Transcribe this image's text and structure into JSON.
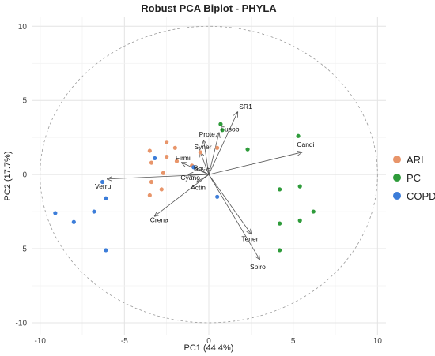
{
  "chart_data": {
    "type": "scatter",
    "title": "Robust PCA Biplot - PHYLA",
    "xlabel": "PC1 (44.4%)",
    "ylabel": "PC2 (17.7%)",
    "xlim": [
      -10.5,
      10.5
    ],
    "ylim": [
      -10.8,
      10.6
    ],
    "xticks": [
      -10,
      -5,
      0,
      5,
      10
    ],
    "yticks": [
      -10,
      -5,
      0,
      5,
      10
    ],
    "grid": true,
    "legend_position": "right",
    "circle_radius": 10,
    "series": [
      {
        "name": "ARI",
        "color": "#E8956A",
        "points": [
          [
            -2.5,
            2.2
          ],
          [
            -2.0,
            1.8
          ],
          [
            -3.5,
            1.6
          ],
          [
            -2.5,
            1.2
          ],
          [
            -3.4,
            0.8
          ],
          [
            -1.9,
            0.9
          ],
          [
            -1.0,
            0.6
          ],
          [
            -2.7,
            0.1
          ],
          [
            -3.4,
            -0.5
          ],
          [
            -2.8,
            -1.0
          ],
          [
            -3.5,
            -1.4
          ],
          [
            -0.5,
            1.5
          ],
          [
            0.5,
            1.8
          ]
        ]
      },
      {
        "name": "PC",
        "color": "#2E9B3A",
        "points": [
          [
            0.7,
            3.4
          ],
          [
            0.8,
            3.0
          ],
          [
            2.3,
            1.7
          ],
          [
            5.3,
            2.6
          ],
          [
            4.2,
            -1.0
          ],
          [
            5.4,
            -0.8
          ],
          [
            6.2,
            -2.5
          ],
          [
            4.2,
            -3.3
          ],
          [
            5.4,
            -3.1
          ],
          [
            4.2,
            -5.1
          ]
        ]
      },
      {
        "name": "COPD",
        "color": "#3C7DD9",
        "points": [
          [
            -6.3,
            -0.5
          ],
          [
            -3.2,
            1.1
          ],
          [
            -6.1,
            -1.6
          ],
          [
            -9.1,
            -2.6
          ],
          [
            -6.8,
            -2.5
          ],
          [
            -8.0,
            -3.2
          ],
          [
            -6.1,
            -5.1
          ],
          [
            0.5,
            -1.5
          ],
          [
            -0.9,
            0.5
          ]
        ]
      }
    ],
    "loadings": [
      {
        "name": "SR1",
        "x": 1.7,
        "y": 4.2
      },
      {
        "name": "Fusob",
        "x": 0.6,
        "y": 2.8
      },
      {
        "name": "Prote",
        "x": -0.3,
        "y": 2.3
      },
      {
        "name": "Syner",
        "x": -0.5,
        "y": 1.5
      },
      {
        "name": "Candi",
        "x": 5.5,
        "y": 1.5
      },
      {
        "name": "Firmi",
        "x": -1.6,
        "y": 0.8
      },
      {
        "name": "Bacte",
        "x": -0.8,
        "y": 0.5
      },
      {
        "name": "Cyano",
        "x": -1.2,
        "y": 0.0
      },
      {
        "name": "Actin",
        "x": -0.7,
        "y": -0.5
      },
      {
        "name": "Verru",
        "x": -6.0,
        "y": -0.3
      },
      {
        "name": "Crena",
        "x": -3.2,
        "y": -2.8
      },
      {
        "name": "Tener",
        "x": 2.5,
        "y": -4.0
      },
      {
        "name": "Spiro",
        "x": 3.0,
        "y": -5.7
      }
    ]
  }
}
